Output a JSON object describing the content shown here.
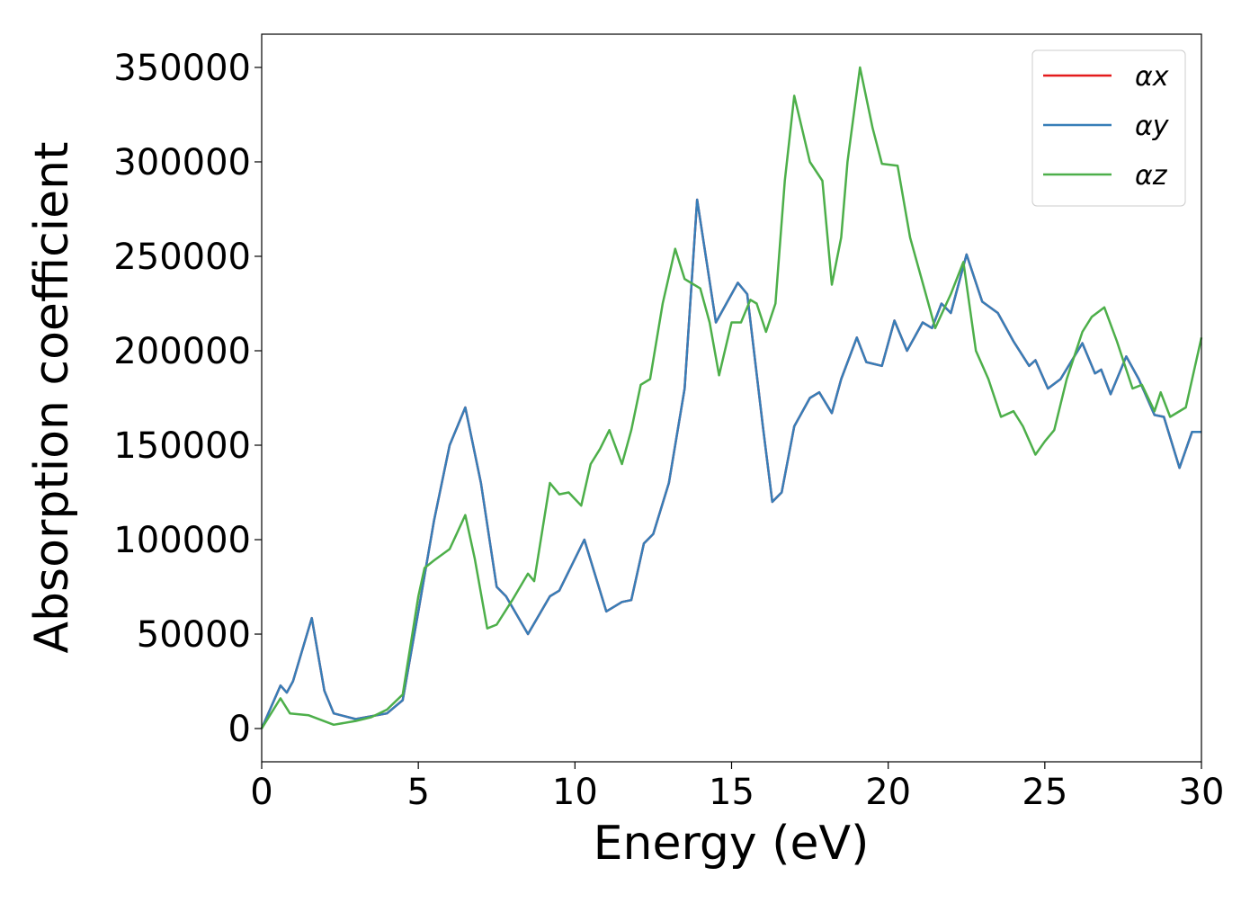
{
  "chart_data": {
    "type": "line",
    "xlabel": "Energy (eV)",
    "ylabel": "Absorption coefficient",
    "xlim": [
      0,
      30
    ],
    "xticks": [
      0,
      5,
      10,
      15,
      20,
      25,
      30
    ],
    "ylim": [
      -17600,
      367600
    ],
    "yticks": [
      0,
      50000,
      100000,
      150000,
      200000,
      250000,
      300000,
      350000
    ],
    "legend": "upper right",
    "series": [
      {
        "name": "αx",
        "color": "#e41a1c",
        "x": [
          0,
          0.6,
          0.8,
          1.0,
          1.6,
          2.0,
          2.3,
          3,
          4,
          4.5,
          5,
          5.5,
          6,
          6.5,
          7,
          7.5,
          7.8,
          8.5,
          9.2,
          9.5,
          10.3,
          11,
          11.5,
          11.8,
          12.2,
          12.5,
          13,
          13.5,
          13.9,
          14.5,
          15.2,
          15.5,
          16,
          16.3,
          16.6,
          17,
          17.5,
          17.8,
          18.2,
          18.5,
          19,
          19.3,
          19.8,
          20.2,
          20.6,
          21.1,
          21.4,
          21.7,
          22,
          22.5,
          23,
          23.5,
          24,
          24.5,
          24.7,
          25.1,
          25.5,
          26.2,
          26.6,
          26.8,
          27.1,
          27.6,
          28,
          28.5,
          28.8,
          29.3,
          29.7,
          30
        ],
        "values": [
          0,
          22800,
          19000,
          25000,
          58500,
          20000,
          8000,
          5000,
          8000,
          15000,
          62000,
          110000,
          150000,
          170000,
          130000,
          75000,
          70000,
          50000,
          70000,
          73000,
          100000,
          62000,
          67000,
          68000,
          98000,
          103000,
          130000,
          180000,
          280000,
          215000,
          236000,
          230000,
          160000,
          120000,
          125000,
          160000,
          175000,
          178000,
          167000,
          185000,
          207000,
          194000,
          192000,
          216000,
          200000,
          215000,
          212000,
          225000,
          220000,
          251000,
          226000,
          220000,
          205000,
          192000,
          195000,
          180000,
          185000,
          204000,
          188000,
          190000,
          177000,
          197000,
          185000,
          166000,
          165000,
          138000,
          157000,
          157000
        ]
      },
      {
        "name": "αy",
        "color": "#377eb8",
        "x": [
          0,
          0.6,
          0.8,
          1.0,
          1.6,
          2.0,
          2.3,
          3,
          4,
          4.5,
          5,
          5.5,
          6,
          6.5,
          7,
          7.5,
          7.8,
          8.5,
          9.2,
          9.5,
          10.3,
          11,
          11.5,
          11.8,
          12.2,
          12.5,
          13,
          13.5,
          13.9,
          14.5,
          15.2,
          15.5,
          16,
          16.3,
          16.6,
          17,
          17.5,
          17.8,
          18.2,
          18.5,
          19,
          19.3,
          19.8,
          20.2,
          20.6,
          21.1,
          21.4,
          21.7,
          22,
          22.5,
          23,
          23.5,
          24,
          24.5,
          24.7,
          25.1,
          25.5,
          26.2,
          26.6,
          26.8,
          27.1,
          27.6,
          28,
          28.5,
          28.8,
          29.3,
          29.7,
          30
        ],
        "values": [
          0,
          22800,
          19000,
          25000,
          58500,
          20000,
          8000,
          5000,
          8000,
          15000,
          62000,
          110000,
          150000,
          170000,
          130000,
          75000,
          70000,
          50000,
          70000,
          73000,
          100000,
          62000,
          67000,
          68000,
          98000,
          103000,
          130000,
          180000,
          280000,
          215000,
          236000,
          230000,
          160000,
          120000,
          125000,
          160000,
          175000,
          178000,
          167000,
          185000,
          207000,
          194000,
          192000,
          216000,
          200000,
          215000,
          212000,
          225000,
          220000,
          251000,
          226000,
          220000,
          205000,
          192000,
          195000,
          180000,
          185000,
          204000,
          188000,
          190000,
          177000,
          197000,
          185000,
          166000,
          165000,
          138000,
          157000,
          157000
        ]
      },
      {
        "name": "αz",
        "color": "#4daf4a",
        "x": [
          0,
          0.6,
          0.9,
          1.5,
          2.3,
          3,
          3.5,
          4,
          4.5,
          5,
          5.2,
          5.5,
          6,
          6.5,
          6.8,
          7.2,
          7.5,
          8,
          8.5,
          8.7,
          9.2,
          9.5,
          9.8,
          10.2,
          10.5,
          10.8,
          11.1,
          11.5,
          11.8,
          12.1,
          12.4,
          12.8,
          13.2,
          13.5,
          14,
          14.3,
          14.6,
          15,
          15.3,
          15.6,
          15.8,
          16.1,
          16.4,
          16.7,
          17,
          17.5,
          17.9,
          18.2,
          18.5,
          18.7,
          19.1,
          19.5,
          19.8,
          20.3,
          20.7,
          21.2,
          21.5,
          22,
          22.4,
          22.8,
          23.2,
          23.6,
          24,
          24.3,
          24.7,
          25,
          25.3,
          25.7,
          26.2,
          26.5,
          26.9,
          27.3,
          27.8,
          28.1,
          28.5,
          28.7,
          29,
          29.5,
          30
        ],
        "values": [
          0,
          16000,
          8000,
          7000,
          2000,
          4000,
          6000,
          10000,
          18000,
          70000,
          85000,
          89000,
          95000,
          113000,
          90000,
          53000,
          55000,
          68000,
          82000,
          78000,
          130000,
          124000,
          125000,
          118000,
          140000,
          148000,
          158000,
          140000,
          158000,
          182000,
          185000,
          225000,
          254000,
          238000,
          233000,
          215000,
          187000,
          215000,
          215000,
          227000,
          225000,
          210000,
          225000,
          290000,
          335000,
          300000,
          290000,
          235000,
          260000,
          300000,
          350000,
          318000,
          299000,
          298000,
          260000,
          230000,
          212000,
          230000,
          247000,
          200000,
          185000,
          165000,
          168000,
          160000,
          145000,
          152000,
          158000,
          185000,
          210000,
          218000,
          223000,
          205000,
          180000,
          182000,
          168000,
          178000,
          165000,
          170000,
          207000
        ]
      }
    ]
  }
}
